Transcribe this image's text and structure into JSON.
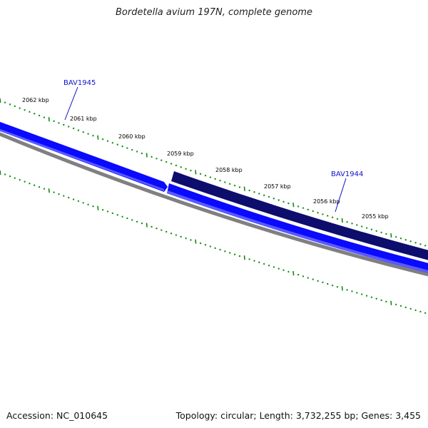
{
  "title": "Bordetella avium 197N, complete genome",
  "footer": {
    "accession": "Accession: NC_010645",
    "summary": "Topology: circular; Length: 3,732,255 bp; Genes: 3,455"
  },
  "colors": {
    "forward_gene": "#0a0aff",
    "reverse_gene": "#0d0d6e",
    "backbone": "#808080",
    "tick": "#118a11",
    "gene_label": "#1010c8"
  },
  "ticks": [
    {
      "label": "2062 kbp"
    },
    {
      "label": "2061 kbp"
    },
    {
      "label": "2060 kbp"
    },
    {
      "label": "2059 kbp"
    },
    {
      "label": "2058 kbp"
    },
    {
      "label": "2057 kbp"
    },
    {
      "label": "2056 kbp"
    },
    {
      "label": "2055 kbp"
    }
  ],
  "genes": [
    {
      "name": "BAV1945",
      "strand": "forward"
    },
    {
      "name": "BAV1944",
      "strand": "reverse"
    }
  ]
}
